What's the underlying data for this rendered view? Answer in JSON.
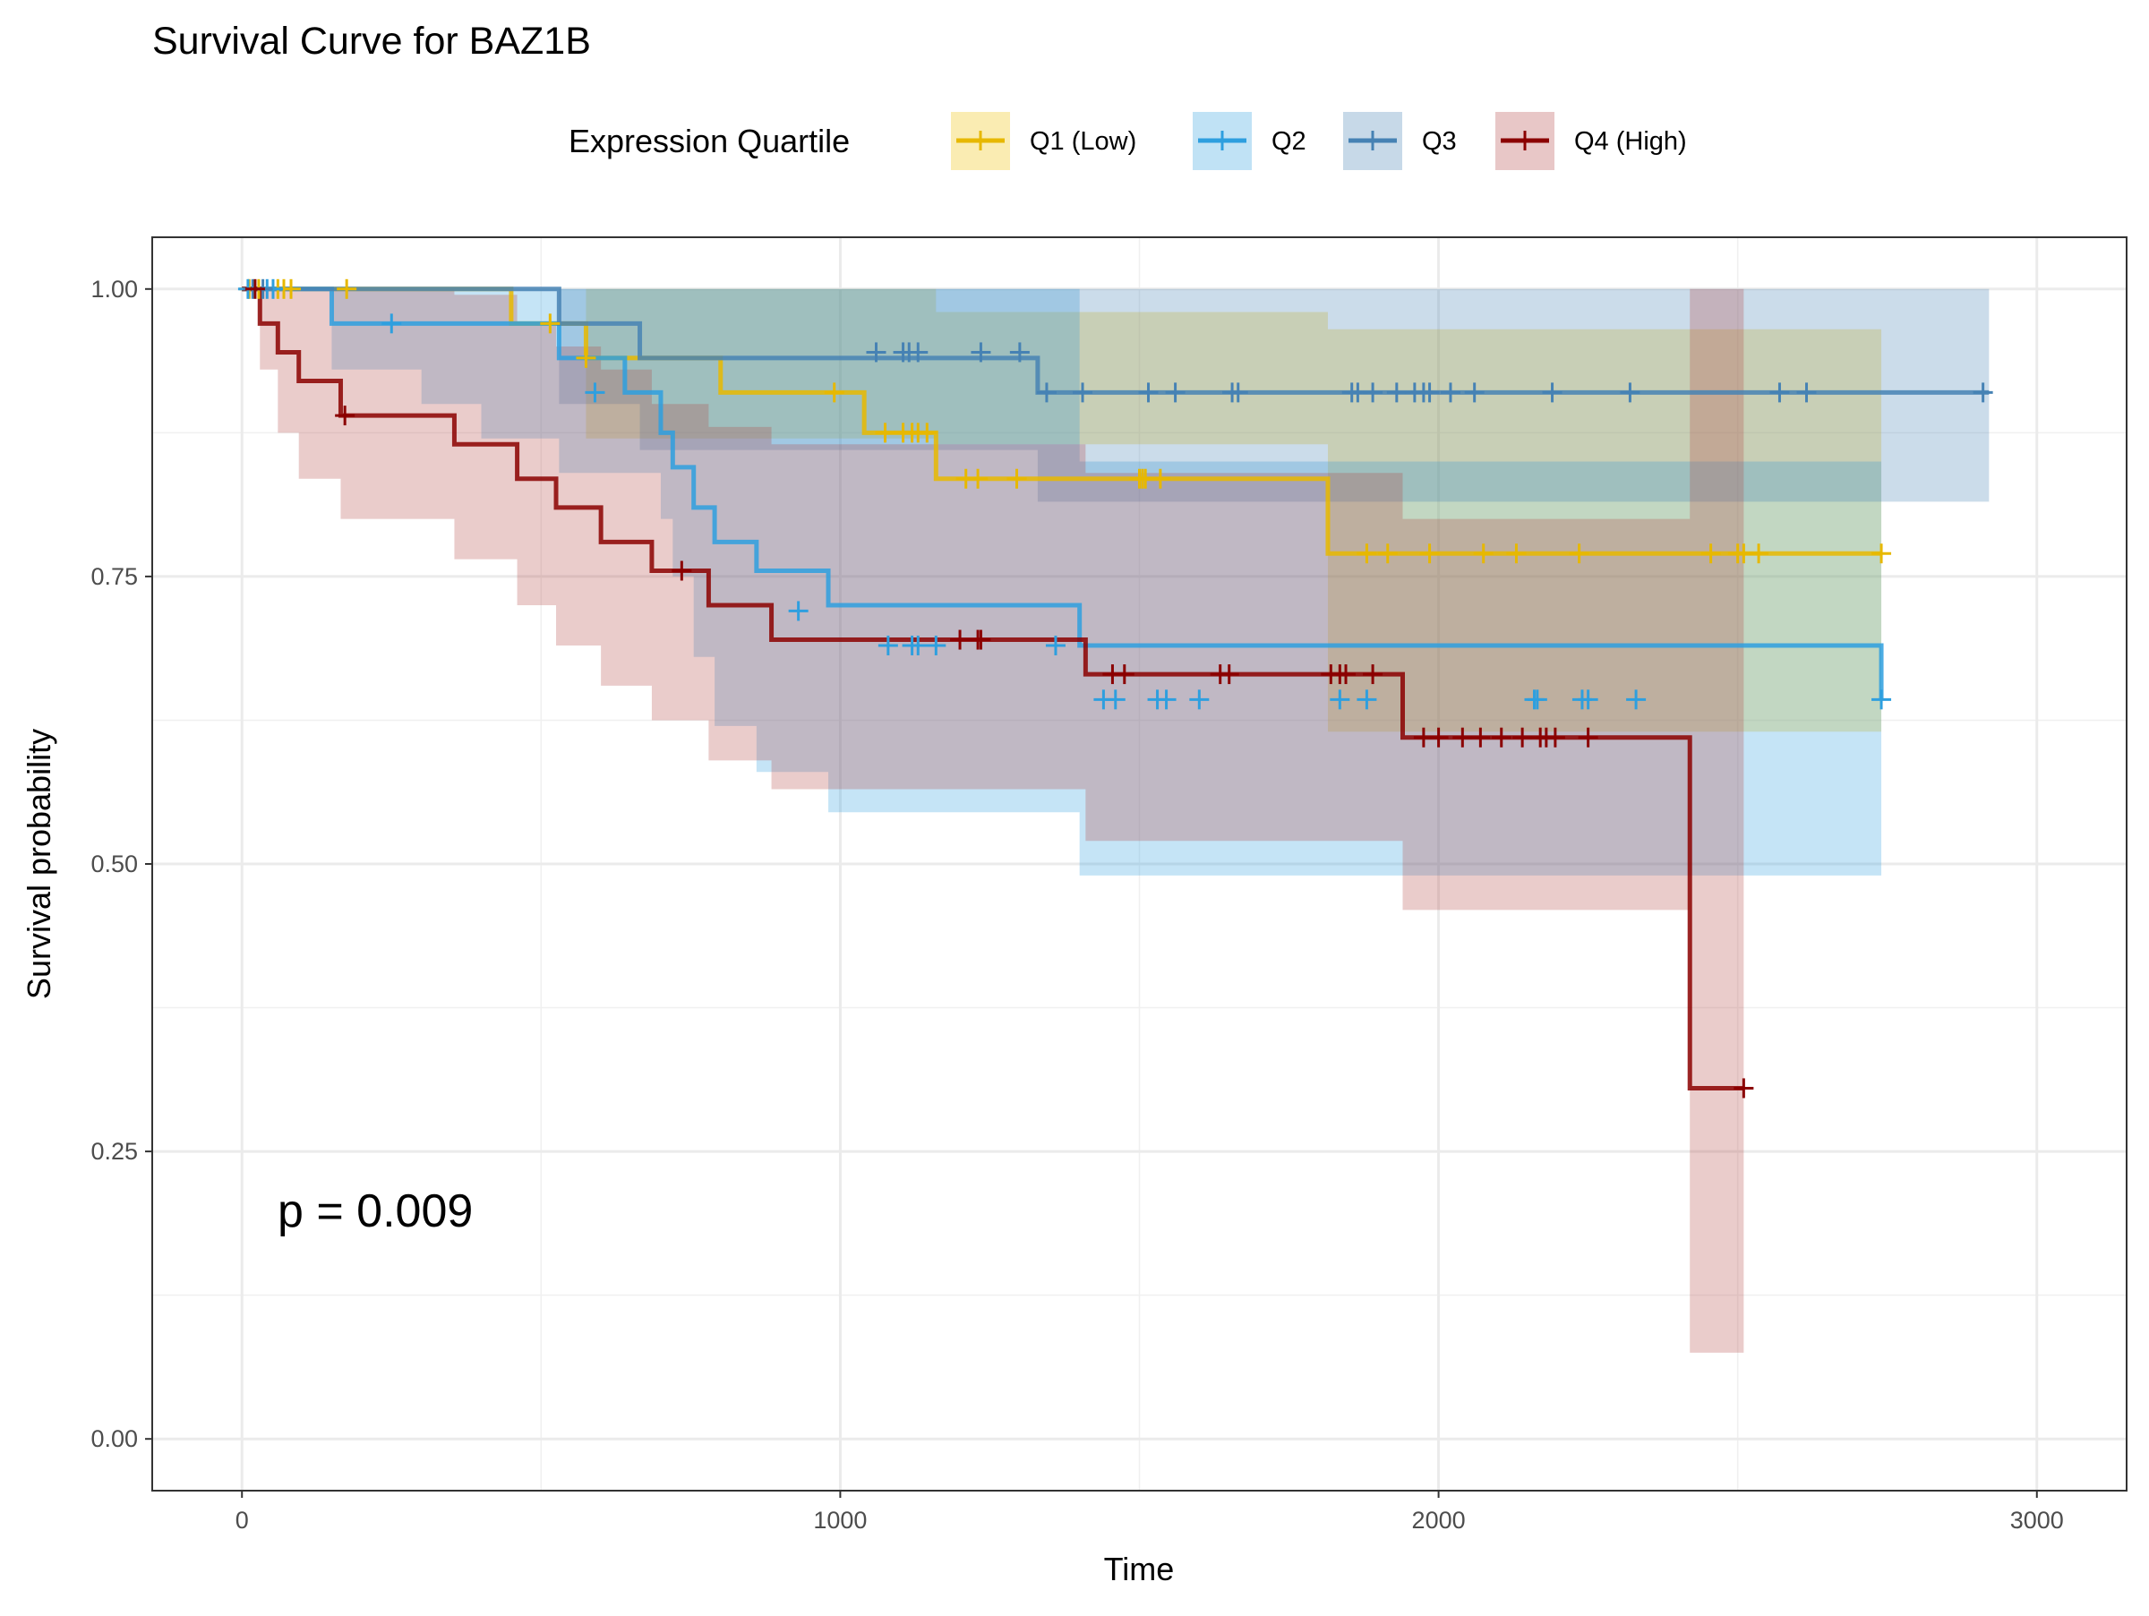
{
  "chart_data": {
    "type": "line",
    "title": "Survival Curve for BAZ1B",
    "xlabel": "Time",
    "ylabel": "Survival probability",
    "xlim": [
      -150,
      3150
    ],
    "ylim": [
      -0.045,
      1.045
    ],
    "x_ticks": [
      0,
      1000,
      2000,
      3000
    ],
    "x_tick_labels": [
      "0",
      "1000",
      "2000",
      "3000"
    ],
    "y_ticks": [
      0,
      0.25,
      0.5,
      0.75,
      1.0
    ],
    "y_tick_labels": [
      "0.00",
      "0.25",
      "0.50",
      "0.75",
      "1.00"
    ],
    "grid": true,
    "legend": {
      "title": "Expression Quartile",
      "position": "top"
    },
    "annotation": "p = 0.009",
    "series": [
      {
        "name": "Q1 (Low)",
        "color": "#E7B800",
        "fill": "#EFC000",
        "steps": [
          [
            0,
            1.0
          ],
          [
            450,
            0.97
          ],
          [
            575,
            0.94
          ],
          [
            800,
            0.91
          ],
          [
            1040,
            0.875
          ],
          [
            1160,
            0.835
          ],
          [
            1815,
            0.77
          ],
          [
            2740,
            0.77
          ]
        ],
        "lower": [
          [
            0,
            1.0
          ],
          [
            450,
            1.0
          ],
          [
            575,
            0.87
          ],
          [
            800,
            0.87
          ],
          [
            1040,
            0.87
          ],
          [
            1160,
            0.865
          ],
          [
            1815,
            0.615
          ],
          [
            2740,
            0.615
          ]
        ],
        "upper": [
          [
            0,
            1.0
          ],
          [
            450,
            1.0
          ],
          [
            575,
            1.0
          ],
          [
            800,
            1.0
          ],
          [
            1040,
            1.0
          ],
          [
            1160,
            0.98
          ],
          [
            1815,
            0.965
          ],
          [
            2740,
            0.965
          ]
        ],
        "censors": [
          [
            12,
            1.0
          ],
          [
            28,
            1.0
          ],
          [
            60,
            1.0
          ],
          [
            70,
            1.0
          ],
          [
            82,
            1.0
          ],
          [
            175,
            1.0
          ],
          [
            515,
            0.97
          ],
          [
            575,
            0.94
          ],
          [
            990,
            0.91
          ],
          [
            1075,
            0.875
          ],
          [
            1105,
            0.875
          ],
          [
            1120,
            0.875
          ],
          [
            1130,
            0.875
          ],
          [
            1145,
            0.875
          ],
          [
            1210,
            0.835
          ],
          [
            1230,
            0.835
          ],
          [
            1295,
            0.835
          ],
          [
            1500,
            0.835
          ],
          [
            1505,
            0.835
          ],
          [
            1510,
            0.835
          ],
          [
            1535,
            0.835
          ],
          [
            1880,
            0.77
          ],
          [
            1915,
            0.77
          ],
          [
            1985,
            0.77
          ],
          [
            2075,
            0.77
          ],
          [
            2130,
            0.77
          ],
          [
            2235,
            0.77
          ],
          [
            2455,
            0.77
          ],
          [
            2500,
            0.77
          ],
          [
            2510,
            0.77
          ],
          [
            2535,
            0.77
          ],
          [
            2740,
            0.77
          ]
        ]
      },
      {
        "name": "Q2",
        "color": "#2E9FDF",
        "fill": "#2E9FDF",
        "steps": [
          [
            0,
            1.0
          ],
          [
            150,
            0.97
          ],
          [
            400,
            0.97
          ],
          [
            530,
            0.94
          ],
          [
            640,
            0.91
          ],
          [
            700,
            0.875
          ],
          [
            720,
            0.845
          ],
          [
            755,
            0.81
          ],
          [
            790,
            0.78
          ],
          [
            860,
            0.755
          ],
          [
            980,
            0.725
          ],
          [
            1400,
            0.69
          ],
          [
            2740,
            0.643
          ]
        ],
        "lower": [
          [
            0,
            1.0
          ],
          [
            150,
            0.93
          ],
          [
            300,
            0.9
          ],
          [
            400,
            0.87
          ],
          [
            530,
            0.84
          ],
          [
            700,
            0.8
          ],
          [
            720,
            0.75
          ],
          [
            755,
            0.68
          ],
          [
            790,
            0.62
          ],
          [
            860,
            0.58
          ],
          [
            980,
            0.545
          ],
          [
            1400,
            0.49
          ],
          [
            2740,
            0.49
          ]
        ],
        "upper": [
          [
            0,
            1.0
          ],
          [
            150,
            1.0
          ],
          [
            400,
            1.0
          ],
          [
            530,
            1.0
          ],
          [
            640,
            1.0
          ],
          [
            720,
            1.0
          ],
          [
            860,
            1.0
          ],
          [
            980,
            1.0
          ],
          [
            1400,
            0.85
          ],
          [
            2740,
            0.85
          ]
        ],
        "censors": [
          [
            10,
            1.0
          ],
          [
            42,
            1.0
          ],
          [
            52,
            1.0
          ],
          [
            250,
            0.97
          ],
          [
            590,
            0.91
          ],
          [
            930,
            0.72
          ],
          [
            1080,
            0.69
          ],
          [
            1120,
            0.69
          ],
          [
            1130,
            0.69
          ],
          [
            1160,
            0.69
          ],
          [
            1360,
            0.69
          ],
          [
            1440,
            0.643
          ],
          [
            1460,
            0.643
          ],
          [
            1530,
            0.643
          ],
          [
            1545,
            0.643
          ],
          [
            1600,
            0.643
          ],
          [
            1835,
            0.643
          ],
          [
            1880,
            0.643
          ],
          [
            2160,
            0.643
          ],
          [
            2165,
            0.643
          ],
          [
            2240,
            0.643
          ],
          [
            2250,
            0.643
          ],
          [
            2330,
            0.643
          ],
          [
            2740,
            0.643
          ]
        ]
      },
      {
        "name": "Q3",
        "color": "#4682B4",
        "fill": "#4682B4",
        "steps": [
          [
            0,
            1.0
          ],
          [
            150,
            0.97
          ],
          [
            400,
            0.97
          ],
          [
            530,
            0.94
          ],
          [
            640,
            0.91
          ],
          [
            700,
            0.875
          ],
          [
            720,
            0.845
          ],
          [
            755,
            0.81
          ],
          [
            790,
            0.78
          ],
          [
            860,
            0.755
          ],
          [
            980,
            0.725
          ],
          [
            1400,
            0.69
          ],
          [
            2740,
            0.643
          ]
        ],
        "display_steps": [
          [
            0,
            1.0
          ],
          [
            400,
            1.0
          ],
          [
            530,
            0.97
          ],
          [
            665,
            0.94
          ],
          [
            1330,
            0.91
          ],
          [
            2920,
            0.91
          ]
        ],
        "lower": [
          [
            0,
            1.0
          ],
          [
            400,
            1.0
          ],
          [
            530,
            0.9
          ],
          [
            665,
            0.86
          ],
          [
            1330,
            0.815
          ],
          [
            2920,
            0.815
          ]
        ],
        "upper": [
          [
            0,
            1.0
          ],
          [
            2920,
            1.0
          ]
        ],
        "censors": [
          [
            18,
            1.0
          ],
          [
            35,
            1.0
          ],
          [
            1060,
            0.945
          ],
          [
            1105,
            0.945
          ],
          [
            1115,
            0.945
          ],
          [
            1130,
            0.945
          ],
          [
            1235,
            0.945
          ],
          [
            1300,
            0.945
          ],
          [
            1345,
            0.91
          ],
          [
            1405,
            0.91
          ],
          [
            1515,
            0.91
          ],
          [
            1560,
            0.91
          ],
          [
            1655,
            0.91
          ],
          [
            1665,
            0.91
          ],
          [
            1855,
            0.91
          ],
          [
            1865,
            0.91
          ],
          [
            1890,
            0.91
          ],
          [
            1930,
            0.91
          ],
          [
            1960,
            0.91
          ],
          [
            1975,
            0.91
          ],
          [
            1985,
            0.91
          ],
          [
            2020,
            0.91
          ],
          [
            2060,
            0.91
          ],
          [
            2190,
            0.91
          ],
          [
            2320,
            0.91
          ],
          [
            2570,
            0.91
          ],
          [
            2615,
            0.91
          ],
          [
            2910,
            0.91
          ]
        ]
      },
      {
        "name": "Q4 (High)",
        "color": "#8B0000",
        "fill": "#B24745",
        "steps": [
          [
            0,
            1.0
          ],
          [
            30,
            0.97
          ],
          [
            60,
            0.945
          ],
          [
            95,
            0.92
          ],
          [
            165,
            0.89
          ],
          [
            355,
            0.865
          ],
          [
            460,
            0.835
          ],
          [
            525,
            0.81
          ],
          [
            600,
            0.78
          ],
          [
            685,
            0.755
          ],
          [
            780,
            0.725
          ],
          [
            885,
            0.695
          ],
          [
            1410,
            0.665
          ],
          [
            1940,
            0.61
          ],
          [
            2420,
            0.305
          ],
          [
            2510,
            0.305
          ]
        ],
        "lower": [
          [
            0,
            1.0
          ],
          [
            30,
            0.93
          ],
          [
            60,
            0.875
          ],
          [
            95,
            0.835
          ],
          [
            165,
            0.8
          ],
          [
            355,
            0.765
          ],
          [
            460,
            0.725
          ],
          [
            525,
            0.69
          ],
          [
            600,
            0.655
          ],
          [
            685,
            0.625
          ],
          [
            780,
            0.59
          ],
          [
            885,
            0.565
          ],
          [
            1410,
            0.52
          ],
          [
            1940,
            0.46
          ],
          [
            2420,
            0.075
          ],
          [
            2510,
            0.075
          ]
        ],
        "upper": [
          [
            0,
            1.0
          ],
          [
            165,
            1.0
          ],
          [
            355,
            0.995
          ],
          [
            460,
            0.97
          ],
          [
            525,
            0.95
          ],
          [
            600,
            0.93
          ],
          [
            685,
            0.9
          ],
          [
            780,
            0.88
          ],
          [
            885,
            0.865
          ],
          [
            1410,
            0.84
          ],
          [
            1940,
            0.8
          ],
          [
            2420,
            1.0
          ],
          [
            2510,
            1.0
          ]
        ],
        "censors": [
          [
            22,
            1.0
          ],
          [
            172,
            0.89
          ],
          [
            735,
            0.755
          ],
          [
            1200,
            0.695
          ],
          [
            1230,
            0.695
          ],
          [
            1235,
            0.695
          ],
          [
            1455,
            0.665
          ],
          [
            1475,
            0.665
          ],
          [
            1635,
            0.665
          ],
          [
            1650,
            0.665
          ],
          [
            1820,
            0.665
          ],
          [
            1835,
            0.665
          ],
          [
            1845,
            0.665
          ],
          [
            1890,
            0.665
          ],
          [
            1975,
            0.61
          ],
          [
            2000,
            0.61
          ],
          [
            2040,
            0.61
          ],
          [
            2070,
            0.61
          ],
          [
            2105,
            0.61
          ],
          [
            2140,
            0.61
          ],
          [
            2170,
            0.61
          ],
          [
            2180,
            0.61
          ],
          [
            2195,
            0.61
          ],
          [
            2250,
            0.61
          ],
          [
            2510,
            0.305
          ]
        ]
      }
    ]
  }
}
